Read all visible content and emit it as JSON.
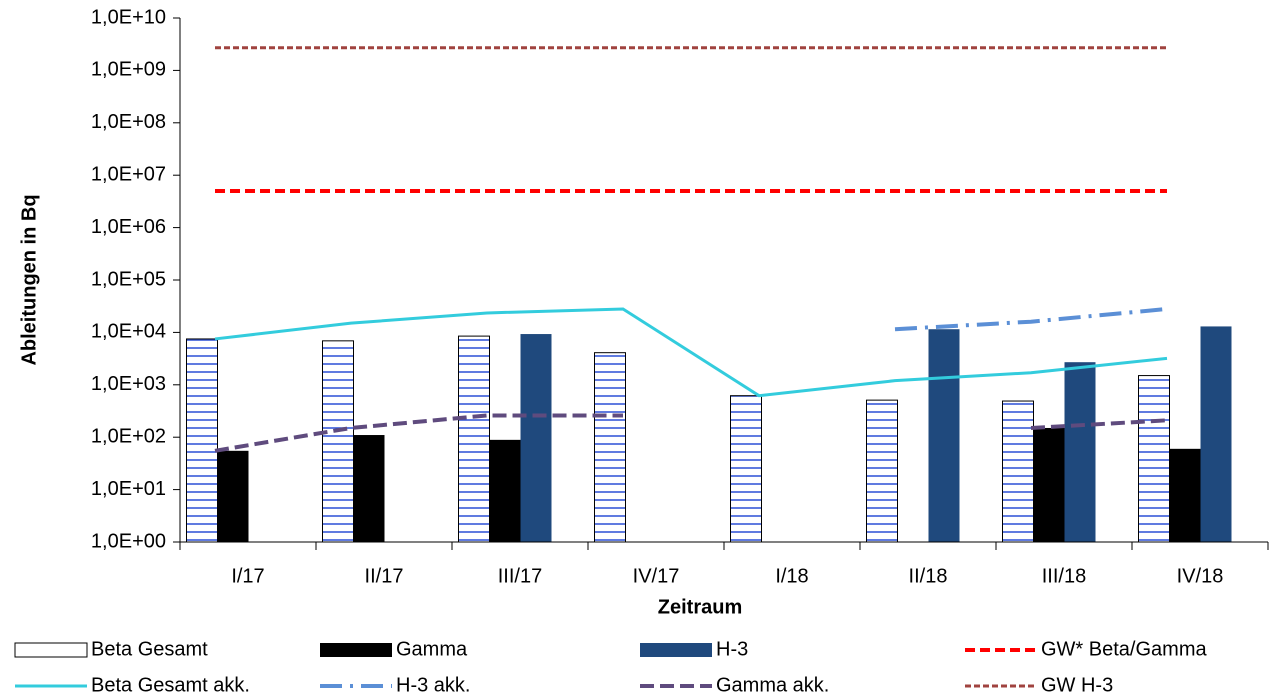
{
  "chart_data": {
    "type": "bar",
    "x_label": "Zeitraum",
    "y_label": "Ableitungen in Bq",
    "categories": [
      "I/17",
      "II/17",
      "III/17",
      "IV/17",
      "I/18",
      "II/18",
      "III/18",
      "IV/18"
    ],
    "log_scale": true,
    "ylim": [
      1,
      10000000000
    ],
    "yticks": [
      {
        "value": 1,
        "label": "1,0E+00"
      },
      {
        "value": 10,
        "label": "1,0E+01"
      },
      {
        "value": 100,
        "label": "1,0E+02"
      },
      {
        "value": 1000,
        "label": "1,0E+03"
      },
      {
        "value": 10000,
        "label": "1,0E+04"
      },
      {
        "value": 100000,
        "label": "1,0E+05"
      },
      {
        "value": 1000000,
        "label": "1,0E+06"
      },
      {
        "value": 10000000,
        "label": "1,0E+07"
      },
      {
        "value": 100000000,
        "label": "1,0E+08"
      },
      {
        "value": 1000000000,
        "label": "1,0E+09"
      },
      {
        "value": 10000000000,
        "label": "1,0E+10"
      }
    ],
    "series": [
      {
        "name": "Beta Gesamt",
        "kind": "bar",
        "pattern": "hlines",
        "color": "#2b4fd6",
        "values": [
          7500,
          6900,
          8500,
          4100,
          620,
          510,
          490,
          1500
        ]
      },
      {
        "name": "Gamma",
        "kind": "bar",
        "color": "#000000",
        "values": [
          55,
          110,
          89,
          null,
          null,
          null,
          150,
          60
        ]
      },
      {
        "name": "H-3",
        "kind": "bar",
        "color": "#1f497d",
        "values": [
          null,
          null,
          9300,
          null,
          null,
          11500,
          2700,
          13000
        ]
      },
      {
        "name": "GW* Beta/Gamma",
        "kind": "line",
        "dash": "10,5",
        "width": 4,
        "color": "#ff0000",
        "values": [
          5000000,
          5000000,
          5000000,
          5000000,
          5000000,
          5000000,
          5000000,
          5000000
        ]
      },
      {
        "name": "Beta Gesamt akk.",
        "kind": "line",
        "width": 3,
        "color": "#33ccdd",
        "values": [
          7500,
          15000,
          23500,
          28000,
          620,
          1200,
          1700,
          3200
        ]
      },
      {
        "name": "H-3 akk.",
        "kind": "line",
        "dash": "22,8,3,8",
        "width": 4,
        "color": "#5b8fd6",
        "values": [
          null,
          null,
          null,
          null,
          null,
          11500,
          16000,
          28000
        ]
      },
      {
        "name": "Gamma akk.",
        "kind": "line",
        "dash": "14,6",
        "width": 4,
        "color": "#5f4b7e",
        "values": [
          55,
          150,
          260,
          260,
          null,
          null,
          150,
          210
        ]
      },
      {
        "name": "GW H-3",
        "kind": "line",
        "dash": "6,3",
        "width": 3,
        "color": "#a0433f",
        "values": [
          2700000000,
          2700000000,
          2700000000,
          2700000000,
          2700000000,
          2700000000,
          2700000000,
          2700000000
        ]
      }
    ]
  }
}
